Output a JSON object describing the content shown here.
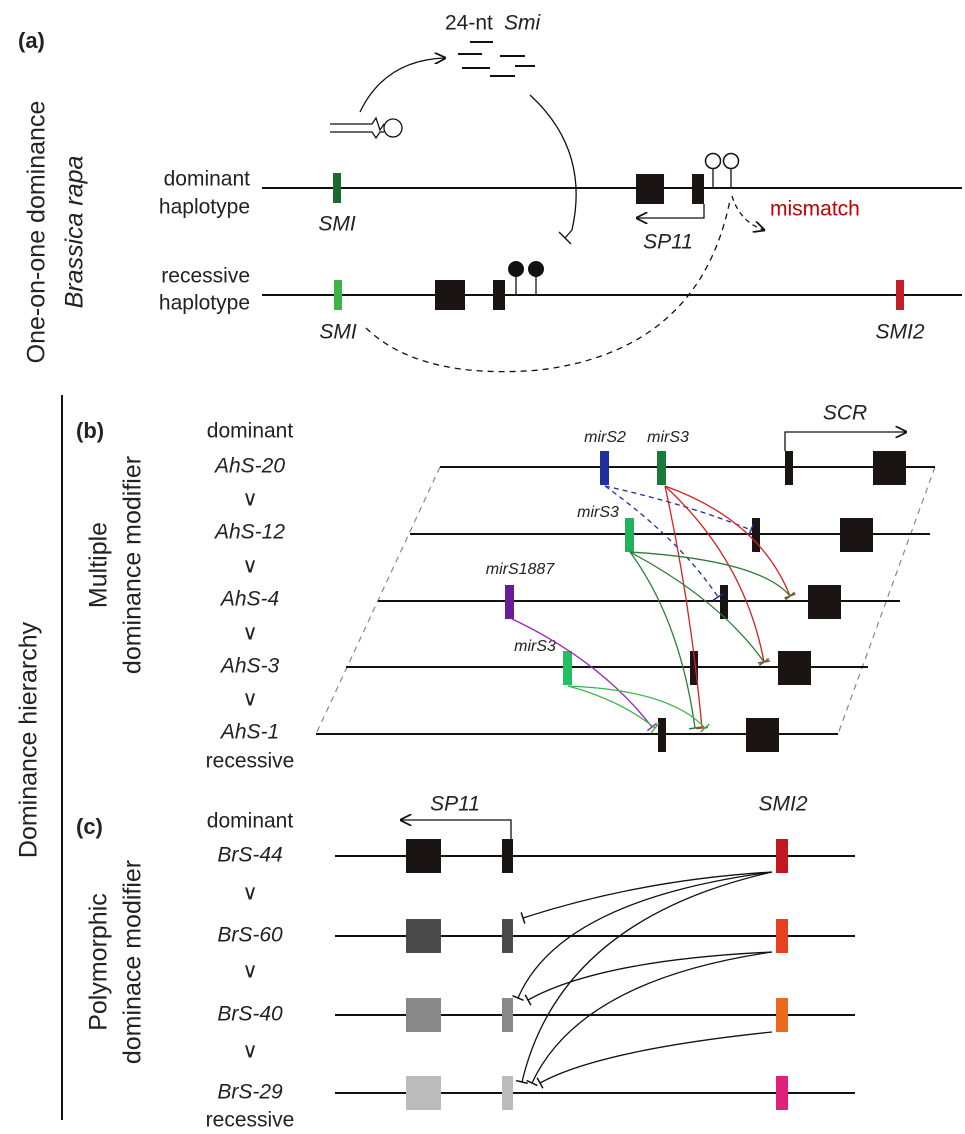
{
  "panel_a": {
    "label": "(a)",
    "side_labels": [
      "One-on-one dominance",
      "Brassica rapa"
    ],
    "sirna": [
      "24-nt",
      "Smi"
    ],
    "dominant": {
      "label": [
        "dominant",
        "haplotype"
      ],
      "gene": "SMI",
      "target": "SP11",
      "note": "mismatch"
    },
    "recessive": {
      "label": [
        "recessive",
        "haplotype"
      ],
      "gene": "SMI",
      "gene2": "SMI2"
    }
  },
  "hierarchy_label": "Dominance hierarchy",
  "panel_b": {
    "label": "(b)",
    "side_label": [
      "Multiple",
      "dominance modifier"
    ],
    "top": "dominant",
    "bottom": "recessive",
    "separator": "∨",
    "haplotypes": [
      "AhS-20",
      "AhS-12",
      "AhS-4",
      "AhS-3",
      "AhS-1"
    ],
    "gene": "SCR",
    "mirnas": [
      "mirS2",
      "mirS3",
      "mirS3",
      "mirS1887",
      "mirS3"
    ]
  },
  "panel_c": {
    "label": "(c)",
    "side_label": [
      "Polymorphic",
      "dominace modifier"
    ],
    "top": "dominant",
    "bottom": "recessive",
    "separator": "∨",
    "haplotypes": [
      "BrS-44",
      "BrS-60",
      "BrS-40",
      "BrS-29"
    ],
    "gene": "SP11",
    "modifier": "SMI2"
  }
}
